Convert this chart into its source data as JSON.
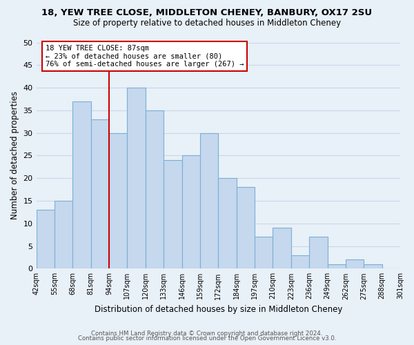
{
  "title": "18, YEW TREE CLOSE, MIDDLETON CHENEY, BANBURY, OX17 2SU",
  "subtitle": "Size of property relative to detached houses in Middleton Cheney",
  "xlabel": "Distribution of detached houses by size in Middleton Cheney",
  "ylabel": "Number of detached properties",
  "bin_labels": [
    "42sqm",
    "55sqm",
    "68sqm",
    "81sqm",
    "94sqm",
    "107sqm",
    "120sqm",
    "133sqm",
    "146sqm",
    "159sqm",
    "172sqm",
    "184sqm",
    "197sqm",
    "210sqm",
    "223sqm",
    "236sqm",
    "249sqm",
    "262sqm",
    "275sqm",
    "288sqm",
    "301sqm"
  ],
  "bar_values": [
    13,
    15,
    37,
    33,
    30,
    40,
    35,
    24,
    25,
    30,
    20,
    18,
    7,
    9,
    3,
    7,
    1,
    2,
    1,
    0
  ],
  "bar_color": "#c5d8ed",
  "bar_edge_color": "#7bafd4",
  "vline_pos": 3,
  "vline_color": "#cc0000",
  "annotation_title": "18 YEW TREE CLOSE: 87sqm",
  "annotation_line1": "← 23% of detached houses are smaller (80)",
  "annotation_line2": "76% of semi-detached houses are larger (267) →",
  "annotation_box_color": "#ffffff",
  "annotation_box_edge": "#cc0000",
  "ylim": [
    0,
    50
  ],
  "yticks": [
    0,
    5,
    10,
    15,
    20,
    25,
    30,
    35,
    40,
    45,
    50
  ],
  "grid_color": "#c8d8e8",
  "footer1": "Contains HM Land Registry data © Crown copyright and database right 2024.",
  "footer2": "Contains public sector information licensed under the Open Government Licence v3.0.",
  "bg_color": "#e8f0f8"
}
